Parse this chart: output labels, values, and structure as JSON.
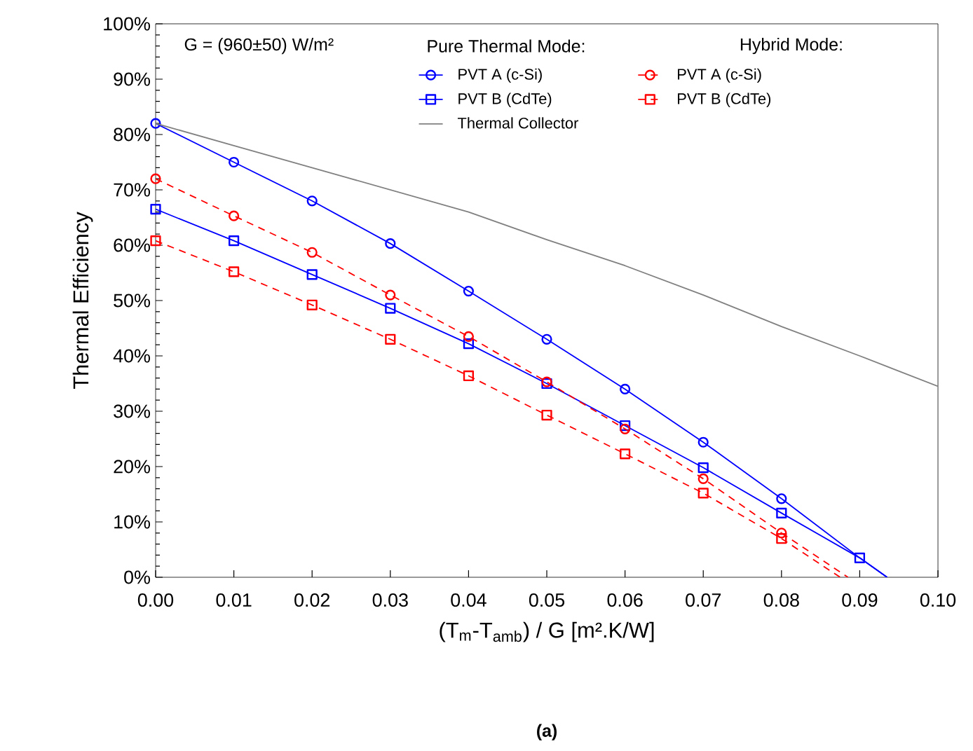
{
  "chart_data": {
    "type": "line",
    "xlabel": "(T$_{m}$-T$_{amb}$) / G [m².K/W]",
    "ylabel": "Thermal Efficiency",
    "annotations": [
      "G = (960±50) W/m²",
      "Pure Thermal Mode:",
      "Hybrid Mode:",
      "**(a)**"
    ],
    "xlim": [
      0,
      0.1
    ],
    "ylim": [
      0,
      100
    ],
    "xticks": [
      {
        "value": 0,
        "label": "0.00"
      },
      {
        "value": 0.01,
        "label": "0.01"
      },
      {
        "value": 0.02,
        "label": "0.02"
      },
      {
        "value": 0.03,
        "label": "0.03"
      },
      {
        "value": 0.04,
        "label": "0.04"
      },
      {
        "value": 0.05,
        "label": "0.05"
      },
      {
        "value": 0.06,
        "label": "0.06"
      },
      {
        "value": 0.07,
        "label": "0.07"
      },
      {
        "value": 0.08,
        "label": "0.08"
      },
      {
        "value": 0.09,
        "label": "0.09"
      },
      {
        "value": 0.1,
        "label": "0.10"
      }
    ],
    "yticks": [
      {
        "value": 0,
        "label": "0%"
      },
      {
        "value": 10,
        "label": "10%"
      },
      {
        "value": 20,
        "label": "20%"
      },
      {
        "value": 30,
        "label": "30%"
      },
      {
        "value": 40,
        "label": "40%"
      },
      {
        "value": 50,
        "label": "50%"
      },
      {
        "value": 60,
        "label": "60%"
      },
      {
        "value": 70,
        "label": "70%"
      },
      {
        "value": 80,
        "label": "80%"
      },
      {
        "value": 90,
        "label": "90%"
      },
      {
        "value": 100,
        "label": "100%"
      }
    ],
    "grid": false,
    "legend": "top",
    "series": [
      {
        "name": "PVT A (c-Si)",
        "color": "#0000ff",
        "marker": "circle",
        "line_style": "solid",
        "x": [
          0,
          0.01,
          0.02,
          0.03,
          0.04,
          0.05,
          0.06,
          0.07,
          0.08
        ],
        "values": [
          82,
          75,
          68,
          60.3,
          51.7,
          43,
          34,
          24.4,
          14.2
        ]
      },
      {
        "color": "#0000ff",
        "marker": "none",
        "line_style": "solid",
        "x": [
          0.08,
          0.09,
          0.0935
        ],
        "values": [
          14.2,
          3.5,
          0
        ]
      },
      {
        "name": "PVT B (CdTe)",
        "color": "#0000ff",
        "marker": "square",
        "line_style": "solid",
        "x": [
          0,
          0.01,
          0.02,
          0.03,
          0.04,
          0.05,
          0.06,
          0.07,
          0.08,
          0.09
        ],
        "values": [
          66.5,
          60.8,
          54.7,
          48.6,
          42.2,
          35,
          27.4,
          19.8,
          11.6,
          3.5
        ]
      },
      {
        "color": "#0000ff",
        "marker": "none",
        "line_style": "solid",
        "x": [
          0.09,
          0.0935
        ],
        "values": [
          3.5,
          0
        ]
      },
      {
        "name": "Thermal Collector",
        "color": "#808080",
        "marker": "none",
        "line_style": "solid",
        "x": [
          0,
          0.01,
          0.02,
          0.03,
          0.04,
          0.05,
          0.06,
          0.07,
          0.08,
          0.09,
          0.1
        ],
        "values": [
          82,
          78,
          74,
          70,
          66,
          61,
          56.3,
          51,
          45.3,
          40,
          34.5
        ]
      },
      {
        "name": "PVT A (c-Si)",
        "color": "#ff0000",
        "marker": "circle",
        "line_style": "dashed",
        "x": [
          0,
          0.01,
          0.02,
          0.03,
          0.04,
          0.05,
          0.06,
          0.07,
          0.08
        ],
        "values": [
          72,
          65.3,
          58.7,
          51,
          43.5,
          35.3,
          26.8,
          17.8,
          8
        ]
      },
      {
        "color": "#ff0000",
        "marker": "none",
        "line_style": "dashed",
        "x": [
          0.08,
          0.0885
        ],
        "values": [
          8,
          0
        ]
      },
      {
        "name": "PVT B (CdTe)",
        "color": "#ff0000",
        "marker": "square",
        "line_style": "dashed",
        "x": [
          0,
          0.01,
          0.02,
          0.03,
          0.04,
          0.05,
          0.06,
          0.07,
          0.08
        ],
        "values": [
          60.8,
          55.2,
          49.2,
          43,
          36.4,
          29.3,
          22.3,
          15.2,
          7
        ]
      },
      {
        "color": "#ff0000",
        "marker": "none",
        "line_style": "dashed",
        "x": [
          0.08,
          0.0875
        ],
        "values": [
          7,
          0
        ]
      }
    ]
  }
}
